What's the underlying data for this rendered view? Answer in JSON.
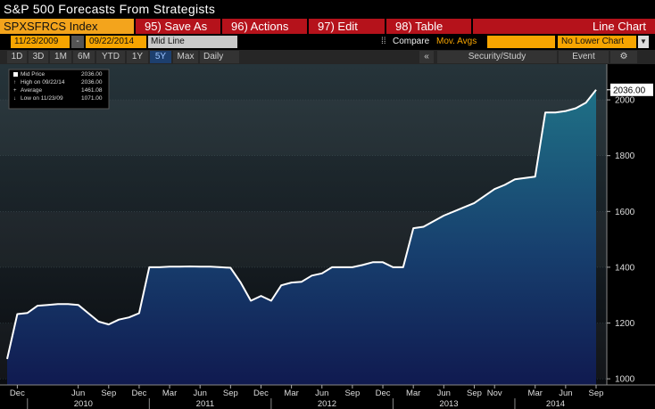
{
  "header": {
    "title": "S&P 500 Forecasts From Strategists"
  },
  "toolbar": {
    "ticker": "SPXSFRCS Index",
    "buttons": [
      "95) Save As",
      "96) Actions",
      "97) Edit",
      "98) Table"
    ],
    "chart_type": "Line Chart"
  },
  "range_bar": {
    "start_date": "11/23/2009",
    "separator": "-",
    "end_date": "09/22/2014",
    "line_mode": "Mid Line",
    "compare": "Compare",
    "moving_averages": "Mov. Avgs",
    "lower_chart": "No Lower Chart"
  },
  "period_bar": {
    "periods": [
      "1D",
      "3D",
      "1M",
      "6M",
      "YTD",
      "1Y",
      "5Y",
      "Max"
    ],
    "frequency": "Daily",
    "tools": [
      "Security/Study",
      "Event"
    ]
  },
  "chart_data": {
    "type": "line",
    "x": [
      "2009-11",
      "2009-12",
      "2010-01",
      "2010-02",
      "2010-03",
      "2010-04",
      "2010-05",
      "2010-06",
      "2010-07",
      "2010-08",
      "2010-09",
      "2010-10",
      "2010-11",
      "2010-12",
      "2011-01",
      "2011-02",
      "2011-03",
      "2011-04",
      "2011-05",
      "2011-06",
      "2011-07",
      "2011-08",
      "2011-09",
      "2011-10",
      "2011-11",
      "2011-12",
      "2012-01",
      "2012-02",
      "2012-03",
      "2012-04",
      "2012-05",
      "2012-06",
      "2012-07",
      "2012-08",
      "2012-09",
      "2012-10",
      "2012-11",
      "2012-12",
      "2013-01",
      "2013-02",
      "2013-03",
      "2013-04",
      "2013-05",
      "2013-06",
      "2013-07",
      "2013-08",
      "2013-09",
      "2013-10",
      "2013-11",
      "2013-12",
      "2014-01",
      "2014-02",
      "2014-03",
      "2014-04",
      "2014-05",
      "2014-06",
      "2014-07",
      "2014-08",
      "2014-09"
    ],
    "series": [
      {
        "name": "Mid Price",
        "color": "#ffffff",
        "values": [
          1071,
          1232,
          1236,
          1262,
          1265,
          1268,
          1268,
          1265,
          1235,
          1205,
          1195,
          1212,
          1220,
          1235,
          1400,
          1400,
          1402,
          1402,
          1403,
          1402,
          1402,
          1400,
          1398,
          1345,
          1280,
          1297,
          1280,
          1335,
          1345,
          1348,
          1370,
          1378,
          1400,
          1400,
          1400,
          1408,
          1418,
          1418,
          1400,
          1400,
          1540,
          1545,
          1565,
          1585,
          1600,
          1615,
          1630,
          1655,
          1680,
          1695,
          1715,
          1720,
          1725,
          1955,
          1955,
          1960,
          1970,
          1990,
          2036
        ]
      }
    ],
    "last_value_label": "2036.00",
    "stats": [
      {
        "label": "High on 09/22/14",
        "value": "2036.00"
      },
      {
        "label": "Average",
        "value": "1461.08"
      },
      {
        "label": "Low on 11/23/09",
        "value": "1071.00"
      }
    ],
    "xlim": [
      "2009-11",
      "2014-09"
    ],
    "xticks": [
      {
        "value": "2009-12",
        "label": "Dec"
      },
      {
        "value": "2010-06",
        "label": "Jun"
      },
      {
        "value": "2010-09",
        "label": "Sep"
      },
      {
        "value": "2010-12",
        "label": "Dec"
      },
      {
        "value": "2011-03",
        "label": "Mar"
      },
      {
        "value": "2011-06",
        "label": "Jun"
      },
      {
        "value": "2011-09",
        "label": "Sep"
      },
      {
        "value": "2011-12",
        "label": "Dec"
      },
      {
        "value": "2012-03",
        "label": "Mar"
      },
      {
        "value": "2012-06",
        "label": "Jun"
      },
      {
        "value": "2012-09",
        "label": "Sep"
      },
      {
        "value": "2012-12",
        "label": "Dec"
      },
      {
        "value": "2013-03",
        "label": "Mar"
      },
      {
        "value": "2013-06",
        "label": "Jun"
      },
      {
        "value": "2013-09",
        "label": "Sep"
      },
      {
        "value": "2013-11",
        "label": "Nov"
      },
      {
        "value": "2014-03",
        "label": "Mar"
      },
      {
        "value": "2014-06",
        "label": "Jun"
      },
      {
        "value": "2014-09",
        "label": "Sep"
      }
    ],
    "years": [
      "2010",
      "2011",
      "2012",
      "2013",
      "2014"
    ],
    "ylim": [
      978,
      2128
    ],
    "yticks": [
      1000,
      1200,
      1400,
      1600,
      1800,
      2000
    ],
    "grid": true
  }
}
